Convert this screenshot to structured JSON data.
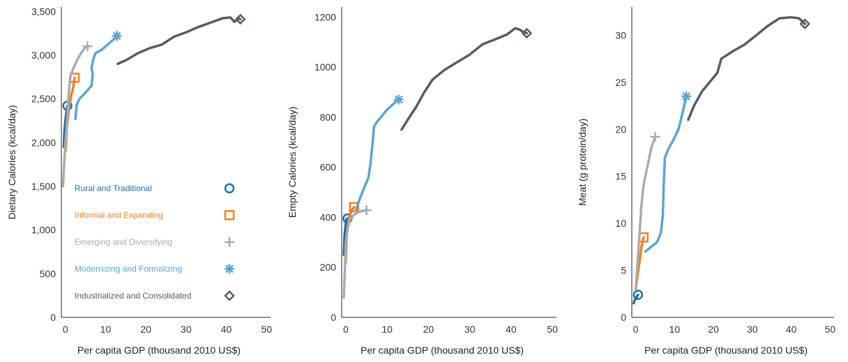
{
  "colors": {
    "Rural and Traditional": "#1f6fa8",
    "Informal and Expanding": "#f08020",
    "Emerging and Diversifying": "#a9abb3",
    "Modernizing and Formalizing": "#5ba3d4",
    "Industrialized and Consolidated": "#565b66"
  },
  "legend": [
    {
      "label": "Rural and Traditional",
      "marker": "circle"
    },
    {
      "label": "Informal and Expanding",
      "marker": "square"
    },
    {
      "label": "Emerging and Diversifying",
      "marker": "plus"
    },
    {
      "label": "Modernizing and Formalizing",
      "marker": "asterisk"
    },
    {
      "label": "Industrialized and Consolidated",
      "marker": "diamond"
    }
  ],
  "chart_data": [
    {
      "type": "line",
      "xlabel": "Per capita GDP (thousand 2010 US$)",
      "ylabel": "Dietary Calories (kcal/day)",
      "xlim": [
        -1,
        51
      ],
      "ylim": [
        0,
        3550
      ],
      "x_ticks": [
        0,
        10,
        20,
        30,
        40,
        50
      ],
      "x_tick_labels": [
        "0",
        "10",
        "20",
        "30",
        "40",
        "50"
      ],
      "y_ticks": [
        0,
        500,
        1000,
        1500,
        2000,
        2500,
        3000,
        3500
      ],
      "y_tick_labels": [
        "0",
        "500",
        "1,000",
        "1,500",
        "2,000",
        "2,500",
        "3,000",
        "3,500"
      ],
      "legend_position": "lower-left",
      "series": [
        {
          "name": "Rural and Traditional",
          "marker": "circle",
          "points": [
            [
              -0.4,
              1950
            ],
            [
              -0.3,
              2050
            ],
            [
              -0.2,
              2150
            ],
            [
              0,
              2250
            ],
            [
              0.2,
              2330
            ],
            [
              0.5,
              2420
            ]
          ]
        },
        {
          "name": "Informal and Expanding",
          "marker": "square",
          "points": [
            [
              0,
              1900
            ],
            [
              0.2,
              2000
            ],
            [
              0.3,
              2150
            ],
            [
              0.7,
              2300
            ],
            [
              1,
              2420
            ],
            [
              1.5,
              2550
            ],
            [
              2,
              2640
            ],
            [
              2.3,
              2740
            ]
          ]
        },
        {
          "name": "Emerging and Diversifying",
          "marker": "plus",
          "points": [
            [
              -0.6,
              1500
            ],
            [
              -0.3,
              1750
            ],
            [
              0,
              2000
            ],
            [
              0.5,
              2300
            ],
            [
              0.8,
              2550
            ],
            [
              1.2,
              2750
            ],
            [
              2,
              2850
            ],
            [
              3,
              2950
            ],
            [
              4,
              3030
            ],
            [
              5,
              3090
            ],
            [
              5.5,
              3100
            ]
          ]
        },
        {
          "name": "Modernizing and Formalizing",
          "marker": "asterisk",
          "points": [
            [
              2.5,
              2270
            ],
            [
              2.8,
              2430
            ],
            [
              3.5,
              2500
            ],
            [
              5,
              2570
            ],
            [
              6.5,
              2650
            ],
            [
              6.8,
              2780
            ],
            [
              6.5,
              2850
            ],
            [
              6.9,
              2950
            ],
            [
              7.5,
              3020
            ],
            [
              9,
              3060
            ],
            [
              10.5,
              3120
            ],
            [
              12,
              3180
            ],
            [
              12.8,
              3220
            ]
          ]
        },
        {
          "name": "Industrialized and Consolidated",
          "marker": "diamond",
          "points": [
            [
              13,
              2900
            ],
            [
              15,
              2940
            ],
            [
              18,
              3020
            ],
            [
              21,
              3080
            ],
            [
              24,
              3120
            ],
            [
              27,
              3210
            ],
            [
              30,
              3260
            ],
            [
              33,
              3320
            ],
            [
              36,
              3370
            ],
            [
              39,
              3420
            ],
            [
              41,
              3430
            ],
            [
              42,
              3380
            ],
            [
              43,
              3420
            ],
            [
              43.5,
              3410
            ]
          ]
        }
      ]
    },
    {
      "type": "line",
      "xlabel": "Per capita GDP (thousand 2010 US$)",
      "ylabel": "Empty Calories (kcal/day)",
      "xlim": [
        -1,
        51
      ],
      "ylim": [
        0,
        1240
      ],
      "x_ticks": [
        0,
        10,
        20,
        30,
        40,
        50
      ],
      "x_tick_labels": [
        "0",
        "10",
        "20",
        "30",
        "40",
        "50"
      ],
      "y_ticks": [
        0,
        200,
        400,
        600,
        800,
        1000,
        1200
      ],
      "y_tick_labels": [
        "0",
        "200",
        "400",
        "600",
        "800",
        "1000",
        "1200"
      ],
      "series": [
        {
          "name": "Rural and Traditional",
          "marker": "circle",
          "points": [
            [
              -0.5,
              250
            ],
            [
              -0.4,
              290
            ],
            [
              -0.3,
              330
            ],
            [
              -0.1,
              360
            ],
            [
              0.1,
              390
            ],
            [
              0.4,
              395
            ]
          ]
        },
        {
          "name": "Informal and Expanding",
          "marker": "square",
          "points": [
            [
              0,
              220
            ],
            [
              0.1,
              270
            ],
            [
              0.2,
              320
            ],
            [
              0.5,
              370
            ],
            [
              1,
              410
            ],
            [
              1.5,
              430
            ],
            [
              2,
              440
            ]
          ]
        },
        {
          "name": "Emerging and Diversifying",
          "marker": "plus",
          "points": [
            [
              -0.5,
              80
            ],
            [
              -0.2,
              200
            ],
            [
              0,
              300
            ],
            [
              0.5,
              360
            ],
            [
              1,
              390
            ],
            [
              2,
              410
            ],
            [
              3,
              420
            ],
            [
              4,
              425
            ],
            [
              5,
              428
            ]
          ]
        },
        {
          "name": "Modernizing and Formalizing",
          "marker": "asterisk",
          "points": [
            [
              2.5,
              430
            ],
            [
              3.5,
              480
            ],
            [
              4.5,
              520
            ],
            [
              5.5,
              560
            ],
            [
              6,
              620
            ],
            [
              6.5,
              700
            ],
            [
              6.8,
              760
            ],
            [
              7.5,
              780
            ],
            [
              8.5,
              800
            ],
            [
              10,
              830
            ],
            [
              12,
              860
            ],
            [
              12.8,
              870
            ]
          ]
        },
        {
          "name": "Industrialized and Consolidated",
          "marker": "diamond",
          "points": [
            [
              13.5,
              750
            ],
            [
              15,
              790
            ],
            [
              17,
              840
            ],
            [
              19,
              900
            ],
            [
              21,
              950
            ],
            [
              24,
              990
            ],
            [
              27,
              1020
            ],
            [
              30,
              1050
            ],
            [
              33,
              1090
            ],
            [
              36,
              1110
            ],
            [
              39,
              1130
            ],
            [
              41,
              1155
            ],
            [
              42,
              1150
            ],
            [
              43,
              1140
            ],
            [
              43.8,
              1135
            ]
          ]
        }
      ]
    },
    {
      "type": "line",
      "xlabel": "Per capita GDP (thousand 2010 US$)",
      "ylabel": "Meat (g protein/day)",
      "xlim": [
        -1,
        51
      ],
      "ylim": [
        0,
        33
      ],
      "x_ticks": [
        0,
        10,
        20,
        30,
        40,
        50
      ],
      "x_tick_labels": [
        "0",
        "10",
        "20",
        "30",
        "40",
        "50"
      ],
      "y_ticks": [
        0,
        5,
        10,
        15,
        20,
        25,
        30
      ],
      "y_tick_labels": [
        "0",
        "5",
        "10",
        "15",
        "20",
        "25",
        "30"
      ],
      "series": [
        {
          "name": "Rural and Traditional",
          "marker": "circle",
          "points": [
            [
              -0.5,
              1.5
            ],
            [
              -0.3,
              1.8
            ],
            [
              0,
              2.0
            ],
            [
              0.3,
              2.2
            ],
            [
              0.6,
              2.4
            ]
          ]
        },
        {
          "name": "Informal and Expanding",
          "marker": "square",
          "points": [
            [
              0,
              3
            ],
            [
              0.5,
              4.5
            ],
            [
              1,
              6
            ],
            [
              1.5,
              7.5
            ],
            [
              2,
              8.5
            ]
          ]
        },
        {
          "name": "Emerging and Diversifying",
          "marker": "plus",
          "points": [
            [
              0,
              3
            ],
            [
              0.5,
              6
            ],
            [
              1,
              9
            ],
            [
              1.5,
              12
            ],
            [
              2,
              14
            ],
            [
              3,
              16
            ],
            [
              4,
              18
            ],
            [
              5,
              19.2
            ]
          ]
        },
        {
          "name": "Modernizing and Formalizing",
          "marker": "asterisk",
          "points": [
            [
              2.5,
              7
            ],
            [
              4,
              7.5
            ],
            [
              5.5,
              8
            ],
            [
              6.5,
              9
            ],
            [
              7,
              11
            ],
            [
              7.2,
              14
            ],
            [
              7.5,
              17
            ],
            [
              8.5,
              18
            ],
            [
              9.5,
              18.7
            ],
            [
              11,
              20
            ],
            [
              12.2,
              22
            ],
            [
              13,
              23.5
            ]
          ]
        },
        {
          "name": "Industrialized and Consolidated",
          "marker": "diamond",
          "points": [
            [
              13.5,
              21
            ],
            [
              15,
              22.5
            ],
            [
              17,
              24
            ],
            [
              19,
              25
            ],
            [
              21,
              26
            ],
            [
              22,
              27.5
            ],
            [
              25,
              28.3
            ],
            [
              28,
              29
            ],
            [
              31,
              30
            ],
            [
              34,
              31
            ],
            [
              37,
              31.8
            ],
            [
              40,
              31.9
            ],
            [
              42,
              31.8
            ],
            [
              43.5,
              31.2
            ]
          ]
        }
      ]
    }
  ]
}
